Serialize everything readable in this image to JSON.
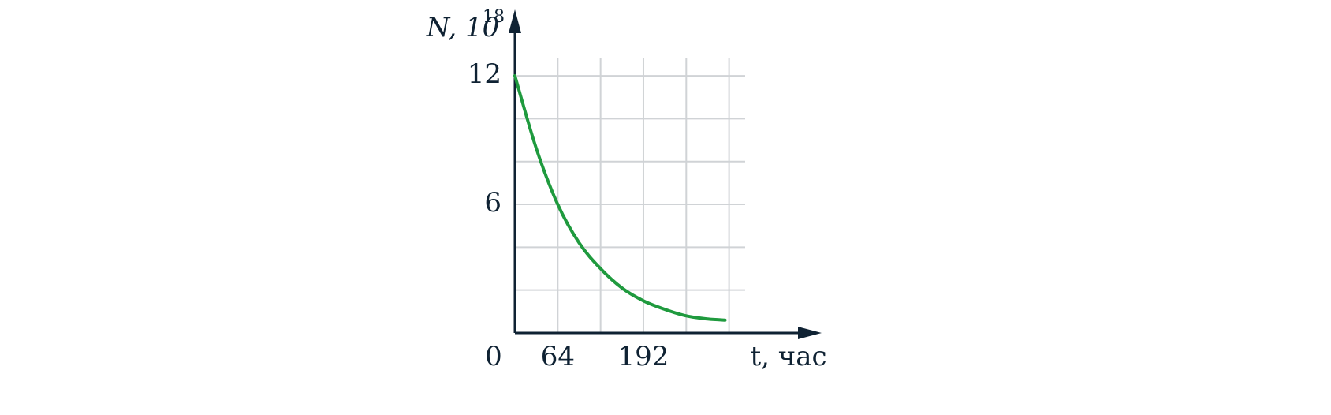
{
  "chart_data": {
    "type": "line",
    "x_label": "t, час",
    "y_label": "N, 10",
    "y_label_exponent": "18",
    "x": [
      0,
      32,
      64,
      96,
      128,
      160,
      192,
      224,
      256,
      288,
      314
    ],
    "values": [
      12,
      8.6,
      6,
      4.2,
      3,
      2.1,
      1.5,
      1.1,
      0.8,
      0.65,
      0.6
    ],
    "color": "#1f9a3e",
    "xlim": [
      0,
      344
    ],
    "ylim": [
      0,
      12.85
    ],
    "xticks": [
      0,
      64,
      192
    ],
    "yticks": [
      6,
      12
    ],
    "xgrid": [
      64,
      128,
      192,
      256,
      320
    ],
    "ygrid": [
      2,
      4,
      6,
      8,
      10,
      12
    ],
    "grid": true
  }
}
